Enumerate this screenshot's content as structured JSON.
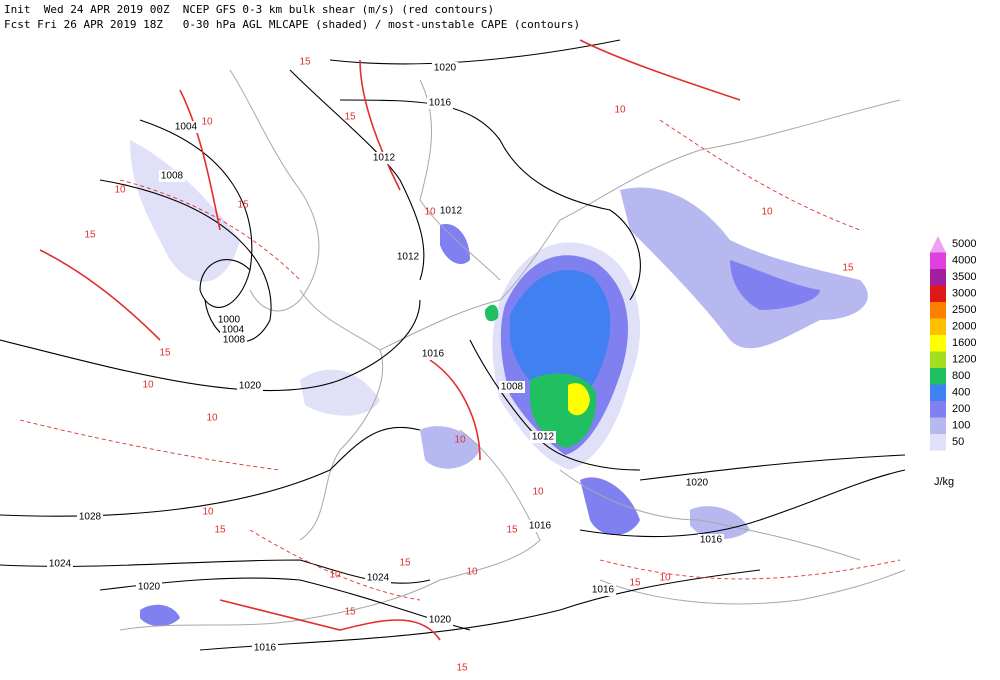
{
  "header": {
    "init_line": "Init  Wed 24 APR 2019 00Z  NCEP GFS 0-3 km bulk shear (m/s) (red contours)",
    "fcst_line": "Fcst Fri 26 APR 2019 18Z   0-30 hPa AGL MLCAPE (shaded) / most-unstable CAPE (contours)"
  },
  "isobar_labels": [
    1020,
    1016,
    1012,
    1004,
    1008,
    1012,
    1012,
    1000,
    1004,
    1008,
    1016,
    1020,
    1008,
    1012,
    1020,
    1016,
    1016,
    1028,
    1024,
    1024,
    1020,
    1020,
    1016,
    1016
  ],
  "shear_labels": [
    15,
    10,
    15,
    15,
    10,
    15,
    10,
    15,
    10,
    10,
    15,
    10,
    10,
    15,
    10,
    10,
    15,
    10,
    15,
    10,
    15,
    15,
    10,
    10,
    15
  ],
  "legend": {
    "levels": [
      {
        "label": 5000,
        "color": "#f0a0f0"
      },
      {
        "label": 4000,
        "color": "#e040e0"
      },
      {
        "label": 3500,
        "color": "#a020a0"
      },
      {
        "label": 3000,
        "color": "#e01818"
      },
      {
        "label": 2500,
        "color": "#ff8000"
      },
      {
        "label": 2000,
        "color": "#ffc000"
      },
      {
        "label": 1600,
        "color": "#ffff00"
      },
      {
        "label": 1200,
        "color": "#a0e020"
      },
      {
        "label": 800,
        "color": "#20c060"
      },
      {
        "label": 400,
        "color": "#4080f0"
      },
      {
        "label": 200,
        "color": "#8080f0"
      },
      {
        "label": 100,
        "color": "#b8b8f0"
      },
      {
        "label": 50,
        "color": "#e0e0f8"
      }
    ],
    "unit": "J/kg"
  }
}
